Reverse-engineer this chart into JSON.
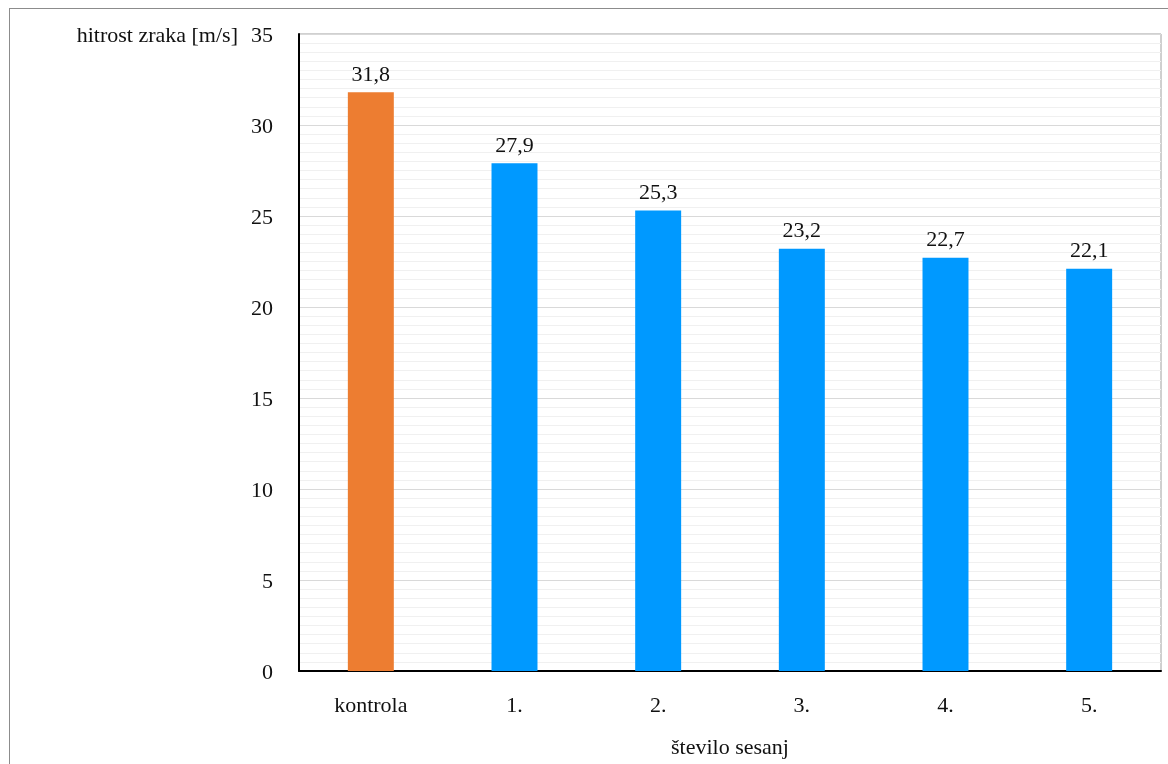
{
  "chart_data": {
    "type": "bar",
    "xlabel": "število sesanj",
    "ylabel": "hitrost zraka [m/s]",
    "categories": [
      "kontrola",
      "1.",
      "2.",
      "3.",
      "4.",
      "5."
    ],
    "values": [
      31.8,
      27.9,
      25.3,
      23.2,
      22.7,
      22.1
    ],
    "colors": [
      "#ed7d31",
      "#0099ff",
      "#0099ff",
      "#0099ff",
      "#0099ff",
      "#0099ff"
    ],
    "value_labels": [
      "31,8",
      "27,9",
      "25,3",
      "23,2",
      "22,7",
      "22,1"
    ],
    "ylim": [
      0,
      35
    ],
    "yticks": [
      0,
      5,
      10,
      15,
      20,
      25,
      30,
      35
    ],
    "grid": "y"
  }
}
